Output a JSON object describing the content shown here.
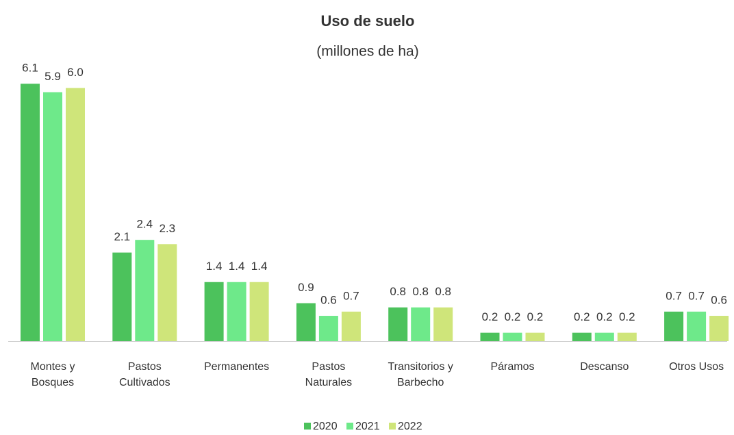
{
  "chart_data": {
    "type": "bar",
    "title": "Uso de suelo",
    "subtitle": "(millones de ha)",
    "categories": [
      "Montes y Bosques",
      "Pastos Cultivados",
      "Permanentes",
      "Pastos Naturales",
      "Transitorios y Barbecho",
      "Páramos",
      "Descanso",
      "Otros Usos"
    ],
    "series": [
      {
        "name": "2020",
        "color": "#4cc25c",
        "values": [
          6.1,
          2.1,
          1.4,
          0.9,
          0.8,
          0.2,
          0.2,
          0.7
        ]
      },
      {
        "name": "2021",
        "color": "#6ee98a",
        "values": [
          5.9,
          2.4,
          1.4,
          0.6,
          0.8,
          0.2,
          0.2,
          0.7
        ]
      },
      {
        "name": "2022",
        "color": "#cfe57a",
        "values": [
          6.0,
          2.3,
          1.4,
          0.7,
          0.8,
          0.2,
          0.2,
          0.6
        ]
      }
    ],
    "value_labels": [
      [
        "6.1",
        "2.1",
        "1.4",
        "0.9",
        "0.8",
        "0.2",
        "0.2",
        "0.7"
      ],
      [
        "5.9",
        "2.4",
        "1.4",
        "0.6",
        "0.8",
        "0.2",
        "0.2",
        "0.7"
      ],
      [
        "6.0",
        "2.3",
        "1.4",
        "0.7",
        "0.8",
        "0.2",
        "0.2",
        "0.6"
      ]
    ],
    "legend": "bottom"
  }
}
